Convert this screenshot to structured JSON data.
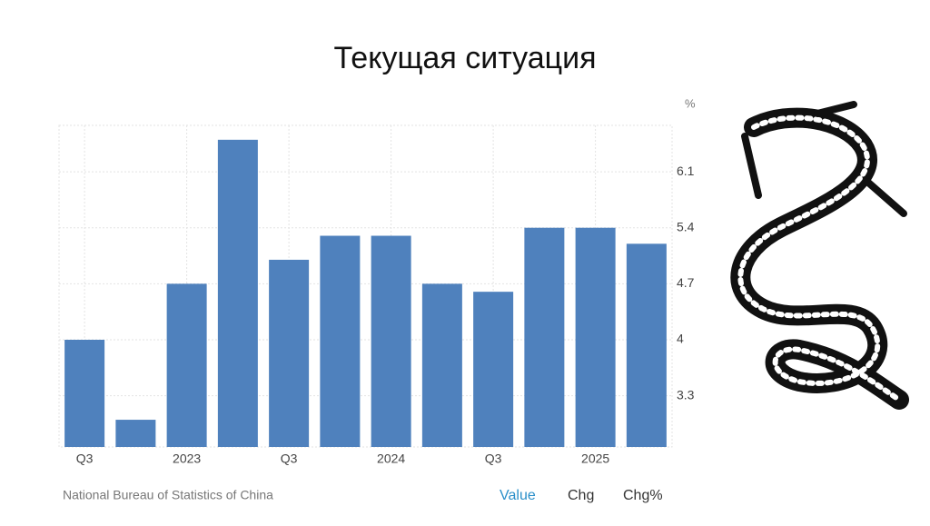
{
  "chart_data": {
    "type": "bar",
    "title": "Текущая ситуация",
    "unit_label": "%",
    "source": "National Bureau of Statistics of China",
    "tabs": [
      "Value",
      "Chg",
      "Chg%"
    ],
    "categories": [
      "Q3",
      null,
      "2023",
      null,
      "Q3",
      null,
      "2024",
      null,
      "Q3",
      null,
      "2025",
      null
    ],
    "values": [
      4.0,
      3.0,
      4.7,
      6.5,
      5.0,
      5.3,
      5.3,
      4.7,
      4.6,
      5.4,
      5.4,
      5.2
    ],
    "color": "#4f81bd",
    "ylim": [
      2.66,
      6.68
    ],
    "yticks": [
      3.3,
      4.0,
      4.7,
      5.4,
      6.1
    ],
    "grid": true
  }
}
